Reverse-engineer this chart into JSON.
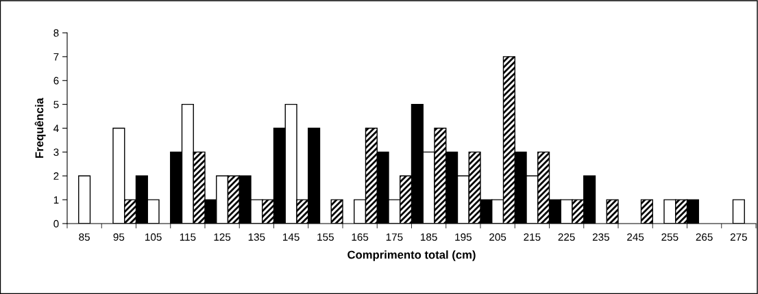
{
  "chart_data": {
    "type": "bar",
    "xlabel": "Comprimento total (cm)",
    "ylabel": "Frequência",
    "categories": [
      "85",
      "95",
      "105",
      "115",
      "125",
      "135",
      "145",
      "155",
      "165",
      "175",
      "185",
      "195",
      "205",
      "215",
      "225",
      "235",
      "245",
      "255",
      "265",
      "275"
    ],
    "series": [
      {
        "color": "#000000",
        "values": [
          0,
          0,
          2,
          3,
          1,
          2,
          4,
          4,
          0,
          3,
          5,
          3,
          1,
          3,
          1,
          2,
          0,
          0,
          1,
          0
        ]
      },
      {
        "color": "#ffffff",
        "values": [
          2,
          4,
          1,
          5,
          2,
          1,
          5,
          0,
          1,
          1,
          3,
          2,
          1,
          2,
          1,
          0,
          0,
          1,
          0,
          1
        ]
      },
      {
        "color": "#000000",
        "values": [
          0,
          1,
          0,
          3,
          2,
          1,
          1,
          1,
          4,
          2,
          4,
          3,
          7,
          3,
          1,
          1,
          1,
          1,
          0,
          0
        ]
      }
    ],
    "ylim": [
      0,
      8
    ],
    "yticks": [
      0,
      1,
      2,
      3,
      4,
      5,
      6,
      7,
      8
    ],
    "grid": false
  }
}
